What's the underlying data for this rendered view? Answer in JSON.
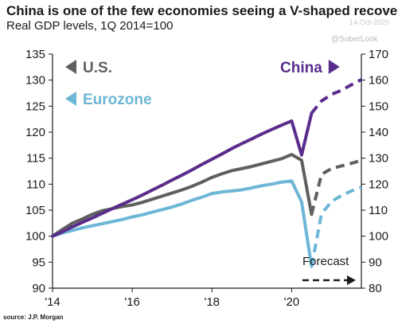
{
  "header": {
    "title": "China is one of the few economies seeing a V-shaped recovery",
    "subtitle": "Real GDP levels, 1Q 2014=100",
    "date": "14-Oct-2020",
    "watermark": "@SoberLook"
  },
  "source": "source: J.P. Morgan",
  "colors": {
    "us": "#5f5f5f",
    "eurozone": "#6db6d6",
    "china": "#5a2d8c",
    "axis": "#1a1a1a"
  },
  "chart_data": {
    "type": "line",
    "title": "China is one of the few economies seeing a V-shaped recovery",
    "subtitle": "Real GDP levels, 1Q 2014=100",
    "x_range": [
      2014.0,
      2021.75
    ],
    "x_ticks": [
      2014,
      2016,
      2018,
      2020
    ],
    "x_tick_labels": [
      "'14",
      "'16",
      "'18",
      "'20"
    ],
    "y_left_range": [
      90,
      135
    ],
    "y_left_ticks": [
      90,
      95,
      100,
      105,
      110,
      115,
      120,
      125,
      130,
      135
    ],
    "y_left_tick_labels": [
      "90",
      "95",
      "100",
      "105",
      "110",
      "115",
      "120",
      "125",
      "130",
      "135"
    ],
    "y_right_range": [
      80,
      170
    ],
    "y_right_ticks": [
      80,
      90,
      100,
      110,
      120,
      130,
      140,
      150,
      160,
      170
    ],
    "y_right_tick_labels": [
      "80",
      "90",
      "100",
      "110",
      "120",
      "130",
      "140",
      "150",
      "160",
      "170"
    ],
    "grid": false,
    "legend_position": "in-plot labels with arrows pointing to the axis each series uses",
    "forecast_start": 2020.5,
    "annotations": [
      {
        "text": "Forecast"
      }
    ],
    "series": [
      {
        "name": "U.S.",
        "axis": "left",
        "color": "#5f5f5f",
        "x": [
          2014.0,
          2014.25,
          2014.5,
          2014.75,
          2015.0,
          2015.25,
          2015.5,
          2015.75,
          2016.0,
          2016.25,
          2016.5,
          2016.75,
          2017.0,
          2017.25,
          2017.5,
          2017.75,
          2018.0,
          2018.25,
          2018.5,
          2018.75,
          2019.0,
          2019.25,
          2019.5,
          2019.75,
          2020.0,
          2020.25,
          2020.5,
          2020.75,
          2021.0,
          2021.25,
          2021.5,
          2021.75
        ],
        "values": [
          100.0,
          101.3,
          102.5,
          103.3,
          104.2,
          104.9,
          105.3,
          105.7,
          106.0,
          106.5,
          107.1,
          107.7,
          108.3,
          108.9,
          109.6,
          110.4,
          111.3,
          112.0,
          112.6,
          113.0,
          113.4,
          113.9,
          114.4,
          114.9,
          115.7,
          114.6,
          104.2,
          111.9,
          113.0,
          113.5,
          114.0,
          114.6
        ],
        "forecast_from_index": 26
      },
      {
        "name": "Eurozone",
        "axis": "left",
        "color": "#6db6d6",
        "x": [
          2014.0,
          2014.25,
          2014.5,
          2014.75,
          2015.0,
          2015.25,
          2015.5,
          2015.75,
          2016.0,
          2016.25,
          2016.5,
          2016.75,
          2017.0,
          2017.25,
          2017.5,
          2017.75,
          2018.0,
          2018.25,
          2018.5,
          2018.75,
          2019.0,
          2019.25,
          2019.5,
          2019.75,
          2020.0,
          2020.25,
          2020.5,
          2020.75,
          2021.0,
          2021.25,
          2021.5,
          2021.75
        ],
        "values": [
          100.0,
          100.6,
          101.1,
          101.6,
          102.0,
          102.4,
          102.8,
          103.2,
          103.7,
          104.1,
          104.6,
          105.1,
          105.6,
          106.2,
          106.9,
          107.5,
          108.2,
          108.5,
          108.7,
          108.9,
          109.3,
          109.7,
          110.0,
          110.4,
          110.6,
          106.6,
          94.2,
          104.3,
          106.7,
          107.8,
          108.7,
          109.4
        ],
        "forecast_from_index": 26
      },
      {
        "name": "China",
        "axis": "right",
        "color": "#5a2d8c",
        "x": [
          2014.0,
          2014.25,
          2014.5,
          2014.75,
          2015.0,
          2015.25,
          2015.5,
          2015.75,
          2016.0,
          2016.25,
          2016.5,
          2016.75,
          2017.0,
          2017.25,
          2017.5,
          2017.75,
          2018.0,
          2018.25,
          2018.5,
          2018.75,
          2019.0,
          2019.25,
          2019.5,
          2019.75,
          2020.0,
          2020.25,
          2020.5,
          2020.75,
          2021.0,
          2021.25,
          2021.5,
          2021.75
        ],
        "values": [
          100.0,
          101.7,
          103.6,
          105.3,
          107.0,
          108.8,
          110.6,
          112.3,
          114.0,
          115.8,
          117.7,
          119.6,
          121.6,
          123.5,
          125.5,
          127.6,
          129.6,
          131.6,
          133.7,
          135.6,
          137.4,
          139.3,
          141.0,
          142.7,
          144.3,
          131.2,
          147.3,
          152.0,
          154.5,
          156.1,
          158.2,
          160.2
        ],
        "forecast_from_index": 26
      }
    ],
    "legend": [
      {
        "name": "U.S.",
        "color": "#5f5f5f",
        "axis": "left"
      },
      {
        "name": "Eurozone",
        "color": "#6db6d6",
        "axis": "left"
      },
      {
        "name": "China",
        "color": "#5a2d8c",
        "axis": "right"
      }
    ]
  }
}
